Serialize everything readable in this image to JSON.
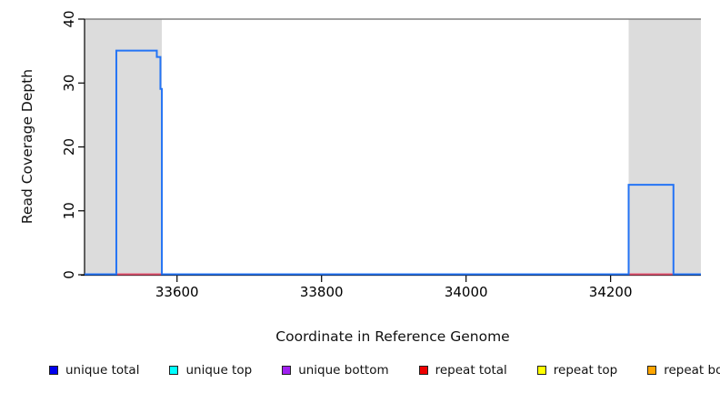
{
  "chart_data": {
    "type": "line",
    "subtype": "step-coverage",
    "title": "",
    "xlabel": "Coordinate in Reference Genome",
    "ylabel": "Read Coverage Depth",
    "xlim": [
      33472,
      34325
    ],
    "ylim": [
      0,
      40
    ],
    "x_ticks": [
      33600,
      33800,
      34000,
      34200
    ],
    "y_ticks": [
      0,
      10,
      20,
      30,
      40
    ],
    "grid": false,
    "region_fill": "#dcdcdc",
    "top_rule": {
      "y": 40,
      "color": "#808080"
    },
    "repeat_regions": [
      {
        "start": 33472,
        "end": 33579
      },
      {
        "start": 34225,
        "end": 34325
      }
    ],
    "baseline": {
      "value": 0,
      "color": "#7b68ee"
    },
    "repeat_total_color": "#e0506e",
    "repeat_total_segments": [
      {
        "start": 33516,
        "end": 33579,
        "value": 0
      },
      {
        "start": 34225,
        "end": 34287,
        "value": 0
      }
    ],
    "series": [
      {
        "name": "unique total",
        "color": "#2474f5",
        "points": [
          [
            33472,
            0
          ],
          [
            33516,
            0
          ],
          [
            33516,
            35
          ],
          [
            33572,
            35
          ],
          [
            33572,
            34
          ],
          [
            33577,
            34
          ],
          [
            33577,
            29
          ],
          [
            33579,
            29
          ],
          [
            33579,
            0
          ],
          [
            34225,
            0
          ],
          [
            34225,
            14
          ],
          [
            34287,
            14
          ],
          [
            34287,
            0
          ],
          [
            34325,
            0
          ]
        ]
      }
    ],
    "legend": [
      {
        "label": "unique total",
        "color": "#0000ee"
      },
      {
        "label": "unique top",
        "color": "#00ffff"
      },
      {
        "label": "unique bottom",
        "color": "#a020f0"
      },
      {
        "label": "repeat total",
        "color": "#ee0000"
      },
      {
        "label": "repeat top",
        "color": "#ffff00"
      },
      {
        "label": "repeat bottom",
        "color": "#ffa500"
      }
    ],
    "legend_position": "bottom"
  }
}
